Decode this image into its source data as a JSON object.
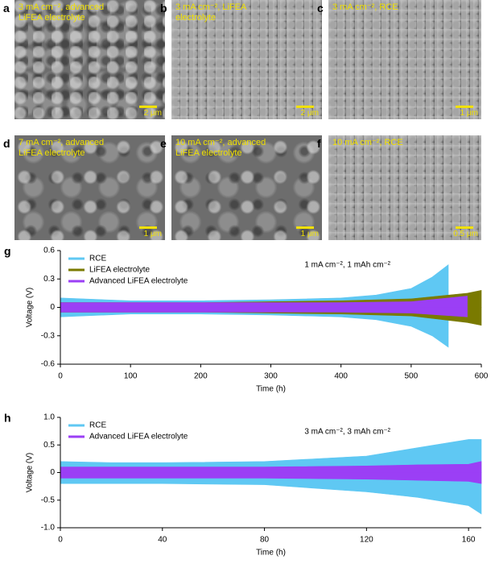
{
  "panels": [
    {
      "label": "a",
      "caption": "3 mA cm⁻², advanced LiFEA electrolyte",
      "scale_bar": "2 μm"
    },
    {
      "label": "b",
      "caption": "3 mA cm⁻², LiFEA electrolyte",
      "scale_bar": "2 μm"
    },
    {
      "label": "c",
      "caption": "3 mA cm⁻², RCE",
      "scale_bar": "1 μm"
    },
    {
      "label": "d",
      "caption": "7 mA cm⁻², advanced LiFEA electrolyte",
      "scale_bar": "1 μm"
    },
    {
      "label": "e",
      "caption": "10 mA cm⁻², advanced LiFEA electrolyte",
      "scale_bar": "1 μm"
    },
    {
      "label": "f",
      "caption": "10 mA cm⁻², RCE",
      "scale_bar": "0.5 μm"
    }
  ],
  "chart_data": [
    {
      "type": "envelope",
      "panel": "g",
      "annotation": "1 mA cm⁻², 1 mAh cm⁻²",
      "xlabel": "Time (h)",
      "ylabel": "Voltage (V)",
      "xlim": [
        0,
        600
      ],
      "xticks": [
        0,
        100,
        200,
        300,
        400,
        500,
        600
      ],
      "ylim": [
        -0.6,
        0.6
      ],
      "yticks": [
        -0.6,
        -0.3,
        0,
        0.3,
        0.6
      ],
      "legend": "upper left",
      "series": [
        {
          "name": "RCE",
          "color": "#5fc8f3",
          "x": [
            0,
            100,
            200,
            300,
            400,
            450,
            500,
            530,
            553
          ],
          "upper": [
            0.1,
            0.07,
            0.07,
            0.08,
            0.1,
            0.13,
            0.2,
            0.32,
            0.45
          ],
          "lower": [
            -0.1,
            -0.07,
            -0.07,
            -0.08,
            -0.1,
            -0.13,
            -0.2,
            -0.3,
            -0.42
          ]
        },
        {
          "name": "LiFEA electrolyte",
          "color": "#7a7a00",
          "x": [
            0,
            100,
            200,
            300,
            400,
            500,
            580,
            600
          ],
          "upper": [
            0.05,
            0.05,
            0.05,
            0.06,
            0.07,
            0.09,
            0.15,
            0.18
          ],
          "lower": [
            -0.05,
            -0.05,
            -0.05,
            -0.06,
            -0.07,
            -0.09,
            -0.16,
            -0.19
          ]
        },
        {
          "name": "Advanced LiFEA electrolyte",
          "color": "#9b3ff5",
          "x": [
            0,
            100,
            200,
            300,
            400,
            500,
            580
          ],
          "upper": [
            0.05,
            0.05,
            0.05,
            0.05,
            0.05,
            0.06,
            0.12
          ],
          "lower": [
            -0.05,
            -0.05,
            -0.05,
            -0.05,
            -0.05,
            -0.06,
            -0.1
          ]
        }
      ]
    },
    {
      "type": "envelope",
      "panel": "h",
      "annotation": "3 mA cm⁻², 3 mAh cm⁻²",
      "xlabel": "Time (h)",
      "ylabel": "Voltage (V)",
      "xlim": [
        0,
        165
      ],
      "xticks": [
        0,
        40,
        80,
        120,
        160
      ],
      "ylim": [
        -1,
        1
      ],
      "yticks": [
        {
          "value": -1,
          "label": "-1.0"
        },
        -0.5,
        0,
        0.5,
        {
          "value": 1,
          "label": "1.0"
        }
      ],
      "legend": "upper left",
      "series": [
        {
          "name": "RCE",
          "color": "#5fc8f3",
          "x": [
            0,
            20,
            40,
            80,
            120,
            140,
            160,
            165
          ],
          "upper": [
            0.2,
            0.18,
            0.18,
            0.2,
            0.3,
            0.45,
            0.6,
            0.6
          ],
          "lower": [
            -0.2,
            -0.2,
            -0.2,
            -0.22,
            -0.35,
            -0.45,
            -0.6,
            -0.75
          ]
        },
        {
          "name": "Advanced LiFEA electrolyte",
          "color": "#9b3ff5",
          "x": [
            0,
            20,
            40,
            80,
            120,
            140,
            160,
            165
          ],
          "upper": [
            0.1,
            0.1,
            0.1,
            0.1,
            0.12,
            0.14,
            0.15,
            0.2
          ],
          "lower": [
            -0.1,
            -0.1,
            -0.1,
            -0.1,
            -0.12,
            -0.14,
            -0.16,
            -0.2
          ]
        }
      ]
    }
  ]
}
